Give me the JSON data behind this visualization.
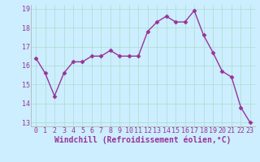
{
  "x": [
    0,
    1,
    2,
    3,
    4,
    5,
    6,
    7,
    8,
    9,
    10,
    11,
    12,
    13,
    14,
    15,
    16,
    17,
    18,
    19,
    20,
    21,
    22,
    23
  ],
  "y": [
    16.4,
    15.6,
    14.4,
    15.6,
    16.2,
    16.2,
    16.5,
    16.5,
    16.8,
    16.5,
    16.5,
    16.5,
    17.8,
    18.3,
    18.6,
    18.3,
    18.3,
    18.9,
    17.6,
    16.7,
    15.7,
    15.4,
    13.8,
    13.0
  ],
  "line_color": "#993399",
  "marker": "D",
  "marker_size": 2.5,
  "linewidth": 1.0,
  "xlabel": "Windchill (Refroidissement éolien,°C)",
  "xlabel_fontsize": 7,
  "xlim": [
    -0.5,
    23.5
  ],
  "ylim": [
    12.8,
    19.2
  ],
  "yticks": [
    13,
    14,
    15,
    16,
    17,
    18,
    19
  ],
  "xticks": [
    0,
    1,
    2,
    3,
    4,
    5,
    6,
    7,
    8,
    9,
    10,
    11,
    12,
    13,
    14,
    15,
    16,
    17,
    18,
    19,
    20,
    21,
    22,
    23
  ],
  "bg_color": "#cceeff",
  "grid_color": "#aaddcc",
  "tick_fontsize": 6,
  "tick_color": "#993399",
  "label_color": "#993399",
  "spine_color": "#aaaaaa"
}
